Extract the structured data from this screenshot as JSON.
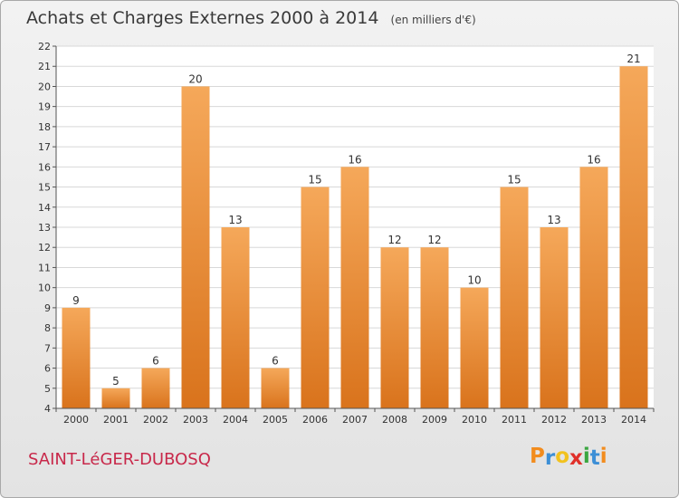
{
  "chart_data": {
    "type": "bar",
    "title": "Achats et Charges Externes 2000 à 2014",
    "unit": "(en milliers d'€)",
    "xlabel": "",
    "ylabel": "",
    "categories": [
      "2000",
      "2001",
      "2002",
      "2003",
      "2004",
      "2005",
      "2006",
      "2007",
      "2008",
      "2009",
      "2010",
      "2011",
      "2012",
      "2013",
      "2014"
    ],
    "values": [
      9,
      5,
      6,
      20,
      13,
      6,
      15,
      16,
      12,
      12,
      10,
      15,
      13,
      16,
      21
    ],
    "ylim": [
      4,
      22
    ],
    "yticks": [
      4,
      5,
      6,
      7,
      8,
      9,
      10,
      11,
      12,
      13,
      14,
      15,
      16,
      17,
      18,
      19,
      20,
      21,
      22
    ],
    "grid": true,
    "bar_color_top": "#f5a85a",
    "bar_color_bottom": "#d9731c"
  },
  "footer": {
    "commune": "SAINT-LéGER-DUBOSQ",
    "commune_color": "#c8284a"
  },
  "logo": {
    "text": "Proxiti",
    "letters": [
      {
        "ch": "P",
        "color": "#f28c1e"
      },
      {
        "ch": "r",
        "color": "#3d8fd6"
      },
      {
        "ch": "o",
        "color": "#f2c21e"
      },
      {
        "ch": "x",
        "color": "#e0302a"
      },
      {
        "ch": "i",
        "color": "#3aa640"
      },
      {
        "ch": "t",
        "color": "#3d8fd6"
      },
      {
        "ch": "i",
        "color": "#f28c1e"
      }
    ]
  }
}
